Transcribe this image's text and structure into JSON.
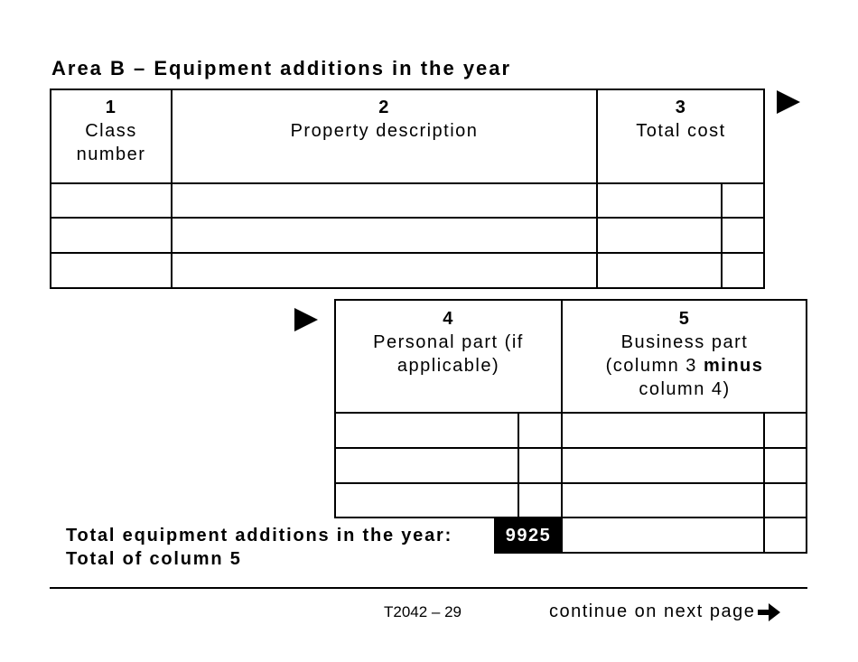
{
  "title": "Area B – Equipment additions in the year",
  "table1": {
    "columns": [
      {
        "number": "1",
        "label": "Class number"
      },
      {
        "number": "2",
        "label": "Property description"
      },
      {
        "number": "3",
        "label": "Total cost"
      }
    ],
    "rows": [
      [
        "",
        "",
        ""
      ],
      [
        "",
        "",
        ""
      ],
      [
        "",
        "",
        ""
      ]
    ]
  },
  "table2": {
    "columns": [
      {
        "number": "4",
        "label": "Personal part (if applicable)"
      },
      {
        "number": "5",
        "label_pre": "Business part (column 3 ",
        "label_bold": "minus",
        "label_post": " column 4)"
      }
    ],
    "rows": [
      [
        "",
        ""
      ],
      [
        "",
        ""
      ],
      [
        "",
        ""
      ]
    ]
  },
  "total": {
    "label_line1": "Total equipment additions in the year:",
    "label_line2": "Total of column 5",
    "line_code": "9925",
    "value": ""
  },
  "footer": {
    "form_page": "T2042 – 29",
    "continue": "continue on next page",
    "continue_icon": "arrow-right-icon"
  }
}
